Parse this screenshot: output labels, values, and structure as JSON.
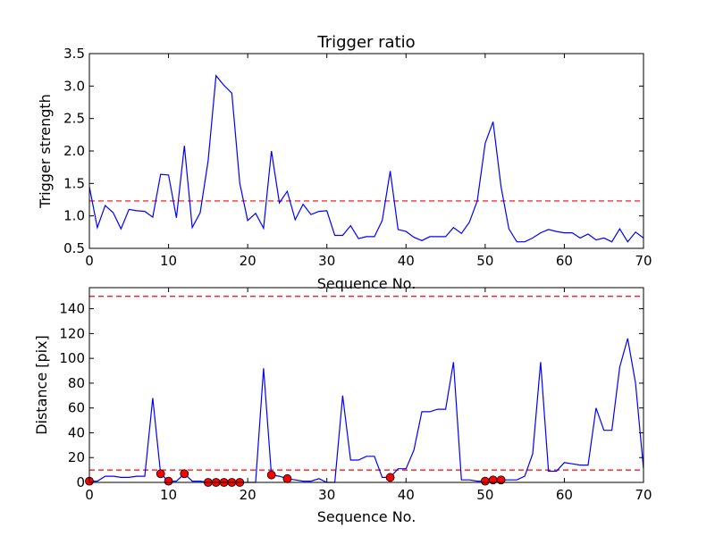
{
  "figure": {
    "background": "#ffffff"
  },
  "chart_data": [
    {
      "type": "line",
      "title": "Trigger ratio",
      "xlabel": "Sequence No.",
      "ylabel": "Trigger strength",
      "xlim": [
        0,
        70
      ],
      "ylim": [
        0.5,
        3.5
      ],
      "xticks": [
        0,
        10,
        20,
        30,
        40,
        50,
        60,
        70
      ],
      "yticks": [
        0.5,
        1.0,
        1.5,
        2.0,
        2.5,
        3.0,
        3.5
      ],
      "x_tick_labels": [
        "0",
        "10",
        "20",
        "30",
        "40",
        "50",
        "60",
        "70"
      ],
      "y_tick_labels": [
        "0.5",
        "1.0",
        "1.5",
        "2.0",
        "2.5",
        "3.0",
        "3.5"
      ],
      "series": [
        {
          "color": "#0000ff",
          "x": [
            0,
            1,
            2,
            3,
            4,
            5,
            6,
            7,
            8,
            9,
            10,
            11,
            12,
            13,
            14,
            15,
            16,
            17,
            18,
            19,
            20,
            21,
            22,
            23,
            24,
            25,
            26,
            27,
            28,
            29,
            30,
            31,
            32,
            33,
            34,
            35,
            36,
            37,
            38,
            39,
            40,
            41,
            42,
            43,
            44,
            45,
            46,
            47,
            48,
            49,
            50,
            51,
            52,
            53,
            54,
            55,
            56,
            57,
            58,
            59,
            60,
            61,
            62,
            63,
            64,
            65,
            66,
            67,
            68,
            69,
            70
          ],
          "y": [
            1.45,
            0.82,
            1.16,
            1.05,
            0.8,
            1.1,
            1.08,
            1.07,
            0.98,
            1.64,
            1.63,
            0.97,
            2.08,
            0.82,
            1.05,
            1.85,
            3.16,
            3.01,
            2.89,
            1.5,
            0.93,
            1.04,
            0.81,
            2.0,
            1.2,
            1.38,
            0.94,
            1.18,
            1.02,
            1.07,
            1.08,
            0.7,
            0.7,
            0.85,
            0.65,
            0.68,
            0.68,
            0.93,
            1.69,
            0.79,
            0.76,
            0.67,
            0.62,
            0.68,
            0.68,
            0.68,
            0.82,
            0.73,
            0.9,
            1.23,
            2.12,
            2.45,
            1.45,
            0.8,
            0.6,
            0.6,
            0.66,
            0.74,
            0.79,
            0.76,
            0.74,
            0.74,
            0.66,
            0.72,
            0.63,
            0.66,
            0.6,
            0.8,
            0.6,
            0.75,
            0.66
          ]
        }
      ],
      "threshold": {
        "y": 1.23,
        "color": "#ff0000",
        "style": "dashed"
      }
    },
    {
      "type": "line",
      "title": "",
      "xlabel": "Sequence No.",
      "ylabel": "Distance [pix]",
      "xlim": [
        0,
        70
      ],
      "ylim": [
        0,
        157
      ],
      "xticks": [
        0,
        10,
        20,
        30,
        40,
        50,
        60,
        70
      ],
      "yticks": [
        0,
        20,
        40,
        60,
        80,
        100,
        120,
        140
      ],
      "x_tick_labels": [
        "0",
        "10",
        "20",
        "30",
        "40",
        "50",
        "60",
        "70"
      ],
      "y_tick_labels": [
        "0",
        "20",
        "40",
        "60",
        "80",
        "100",
        "120",
        "140"
      ],
      "series": [
        {
          "color": "#0000ff",
          "x": [
            0,
            1,
            2,
            3,
            4,
            5,
            6,
            7,
            8,
            9,
            10,
            11,
            12,
            13,
            14,
            15,
            16,
            17,
            18,
            19,
            20,
            21,
            22,
            23,
            24,
            25,
            26,
            27,
            28,
            29,
            30,
            31,
            32,
            33,
            34,
            35,
            36,
            37,
            38,
            39,
            40,
            41,
            42,
            43,
            44,
            45,
            46,
            47,
            48,
            49,
            50,
            51,
            52,
            53,
            54,
            55,
            56,
            57,
            58,
            59,
            60,
            61,
            62,
            63,
            64,
            65,
            66,
            67,
            68,
            69,
            70
          ],
          "y": [
            1,
            1,
            5,
            5,
            4,
            4,
            5,
            5,
            68,
            7,
            1,
            1,
            7,
            1,
            1,
            0,
            0,
            0,
            0,
            0,
            0,
            0,
            92,
            6,
            5,
            3,
            2,
            1,
            1,
            3,
            0,
            0,
            70,
            18,
            18,
            21,
            21,
            4,
            4,
            11,
            11,
            26,
            57,
            57,
            59,
            59,
            97,
            2,
            2,
            1,
            1,
            2,
            2,
            2,
            2,
            5,
            23,
            97,
            9,
            9,
            16,
            15,
            14,
            14,
            60,
            42,
            42,
            93,
            116,
            80,
            11
          ]
        }
      ],
      "markers": {
        "color": "#ff0000",
        "edge_color": "#000000",
        "x": [
          0,
          9,
          10,
          12,
          15,
          16,
          17,
          18,
          19,
          23,
          25,
          38,
          50,
          51,
          52
        ],
        "y": [
          1,
          7,
          1,
          7,
          0,
          0,
          0,
          0,
          0,
          6,
          3,
          4,
          1,
          2,
          2
        ]
      },
      "thresholds": [
        {
          "y": 10,
          "color": "#ff0000",
          "style": "dashed"
        },
        {
          "y": 150,
          "color": "#ff0000",
          "style": "dashed"
        }
      ]
    }
  ]
}
